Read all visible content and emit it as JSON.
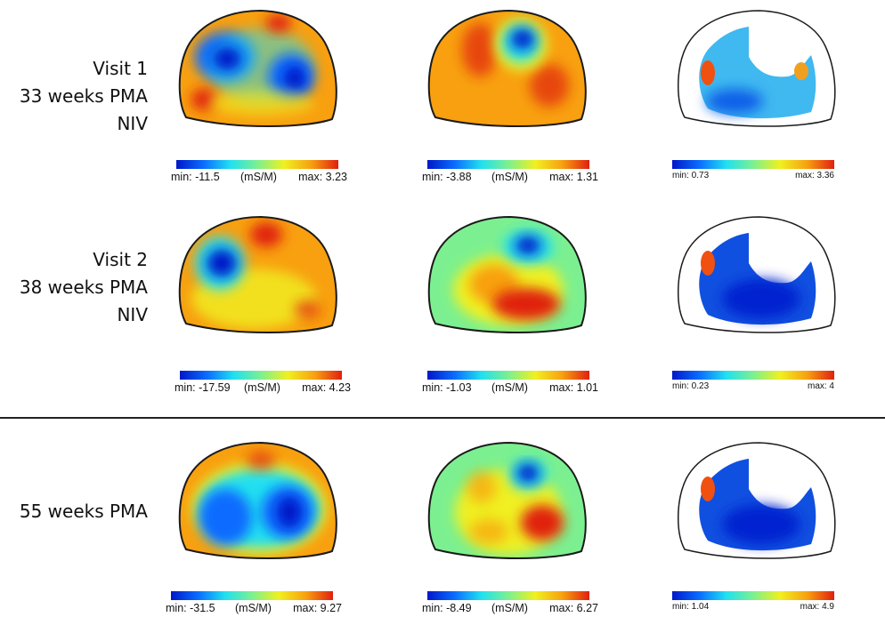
{
  "chart_data": {
    "type": "heatmap",
    "title": "",
    "description": "Electrical impedance tomography conductivity images of the thorax cross-section at three time points",
    "units": "mS/M",
    "colormap": [
      "#0018c8",
      "#0a6cff",
      "#20e0f0",
      "#7cf090",
      "#f0f020",
      "#f8a010",
      "#e02010"
    ],
    "columns": [
      "column-1",
      "column-2",
      "column-3"
    ],
    "rows": [
      {
        "label_lines": [
          "Visit 1",
          "33 weeks PMA",
          "NIV"
        ],
        "panels": [
          {
            "min_label": "min: -11.5",
            "unit_label": "(mS/M)",
            "max_label": "max: 3.23",
            "min": -11.5,
            "max": 3.23
          },
          {
            "min_label": "min: -3.88",
            "unit_label": "(mS/M)",
            "max_label": "max: 1.31",
            "min": -3.88,
            "max": 1.31
          },
          {
            "min_label": "min: 0.73",
            "unit_label": "",
            "max_label": "max: 3.36",
            "min": 0.73,
            "max": 3.36
          }
        ]
      },
      {
        "label_lines": [
          "Visit 2",
          "38 weeks PMA",
          "NIV"
        ],
        "panels": [
          {
            "min_label": "min: -17.59",
            "unit_label": "(mS/M)",
            "max_label": "max: 4.23",
            "min": -17.59,
            "max": 4.23
          },
          {
            "min_label": "min: -1.03",
            "unit_label": "(mS/M)",
            "max_label": "max: 1.01",
            "min": -1.03,
            "max": 1.01
          },
          {
            "min_label": "min: 0.23",
            "unit_label": "",
            "max_label": "max: 4",
            "min": 0.23,
            "max": 4
          }
        ]
      },
      {
        "label_lines": [
          "55 weeks PMA"
        ],
        "panels": [
          {
            "min_label": "min: -31.5",
            "unit_label": "(mS/M)",
            "max_label": "max: 9.27",
            "min": -31.5,
            "max": 9.27
          },
          {
            "min_label": "min: -8.49",
            "unit_label": "(mS/M)",
            "max_label": "max: 6.27",
            "min": -8.49,
            "max": 6.27
          },
          {
            "min_label": "min: 1.04",
            "unit_label": "",
            "max_label": "max: 4.9",
            "min": 1.04,
            "max": 4.9
          }
        ]
      }
    ]
  }
}
